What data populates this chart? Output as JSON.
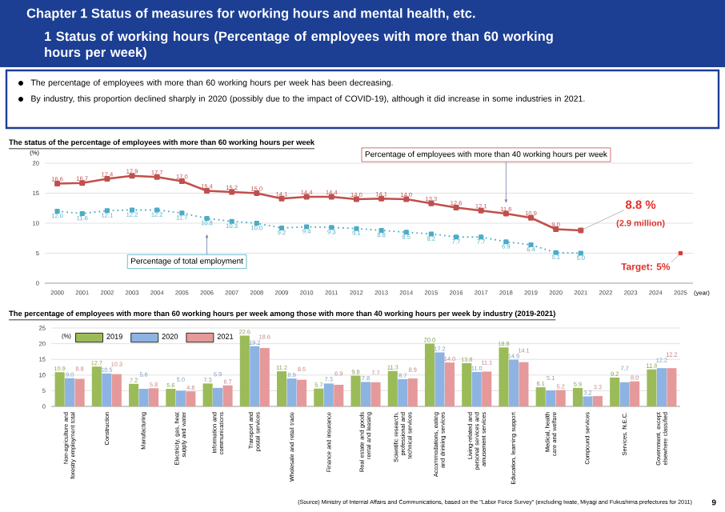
{
  "chart_data": [
    {
      "type": "other",
      "title": "Chapter 1    Status of measures for working hours and mental health, etc.",
      "subtitle": "1    Status of working hours (Percentage of employees with more than 60 working hours per week)",
      "annotations": [
        "The percentage of employees with more than 60 working hours per week has been decreasing.",
        "By industry, this proportion declined sharply in 2020 (possibly due to the impact of COVID-19), although it did increase in some industries in 2021."
      ]
    },
    {
      "type": "line",
      "title": "The status of the percentage of employees with more than 60 working hours per week",
      "xlabel": "(year)",
      "ylabel": "(%)",
      "x": [
        2000,
        2001,
        2002,
        2003,
        2004,
        2005,
        2006,
        2007,
        2008,
        2009,
        2010,
        2011,
        2012,
        2013,
        2014,
        2015,
        2016,
        2017,
        2018,
        2019,
        2020,
        2021
      ],
      "xlim": [
        1999.5,
        2025.5
      ],
      "xticks": [
        2000,
        2001,
        2002,
        2003,
        2004,
        2005,
        2006,
        2007,
        2008,
        2009,
        2010,
        2011,
        2012,
        2013,
        2014,
        2015,
        2016,
        2017,
        2018,
        2019,
        2020,
        2021,
        2022,
        2023,
        2024,
        2025
      ],
      "ylim": [
        0,
        20
      ],
      "yticks": [
        0,
        5,
        10,
        15,
        20
      ],
      "grid": "y",
      "marker": "square",
      "series": [
        {
          "name": "Percentage of employees with more than 40 working hours per week",
          "color": "#c0504d",
          "line_style": "solid",
          "values": [
            16.6,
            16.7,
            17.4,
            17.9,
            17.7,
            17.0,
            15.4,
            15.2,
            15.0,
            14.1,
            14.4,
            14.4,
            14.0,
            14.1,
            14.0,
            13.3,
            12.6,
            12.1,
            11.6,
            10.9,
            9.0,
            8.8
          ],
          "value_labels": [
            "16.6",
            "16.7",
            "17.4",
            "17.9",
            "17.7",
            "17.0",
            "15.4",
            "15.2",
            "15.0",
            "14.1",
            "14.4",
            "14.4",
            "14.0",
            "14.1",
            "14.0",
            "13.3",
            "12.6",
            "12.1",
            "11.6",
            "10.9",
            "9.0",
            null
          ]
        },
        {
          "name": "Percentage of total employment",
          "color": "#4bacc6",
          "line_style": "dotted",
          "values": [
            12.0,
            11.6,
            12.1,
            12.2,
            12.2,
            11.7,
            10.8,
            10.3,
            10.0,
            9.2,
            9.4,
            9.3,
            9.1,
            8.8,
            8.5,
            8.2,
            7.7,
            7.7,
            6.9,
            6.4,
            5.1,
            5.0
          ],
          "value_labels": [
            "12.0",
            "11.6",
            "12.1",
            "12.2",
            "12.2",
            "11.7",
            "10.8",
            "10.3",
            "10.0",
            "9.2",
            "9.4",
            "9.3",
            "9.1",
            "8.8",
            "8.5",
            "8.2",
            "7.7",
            "7.7",
            "6.9",
            "6.4",
            "5.1",
            "5.0"
          ]
        },
        {
          "type": "scatter",
          "color": "#e0302a",
          "x": [
            2025
          ],
          "values": [
            5
          ]
        }
      ],
      "annotations": [
        {
          "text": "8.8 %",
          "x": 2021,
          "y": 8.8
        },
        "(2.9 million)",
        {
          "text": "Target: 5%",
          "x": 2025,
          "y": 5
        }
      ]
    },
    {
      "type": "bar",
      "title": "The percentage of employees with more than 60 working hours per week among those with more than 40 working hours per week by industry (2019-2021)",
      "ylabel": "(%)",
      "categories": [
        "Non-agriculture and forestry employment total",
        "Construction",
        "Manufacturing",
        "Electricity, gas, heat supply and water",
        "Information and communications",
        "Transport and postal services",
        "Wholesale and retail trade",
        "Finance and insurance",
        "Real estate and goods rental and leasing",
        "Scientific research, professional and technical services",
        "Accommodations, eating and drinking services",
        "Living-related and personal services and amusement services",
        "Education, learning support",
        "Medical, health care and welfare",
        "Compound services",
        "Services, N.E.C.",
        "Government, except elsewhere classified"
      ],
      "ylim": [
        0,
        25
      ],
      "yticks": [
        0,
        5,
        10,
        15,
        20,
        25
      ],
      "grid": "y",
      "legend": "top left",
      "series": [
        {
          "name": "2019",
          "color": "#9bbb59",
          "values": [
            10.9,
            12.7,
            7.2,
            5.6,
            7.3,
            22.6,
            11.2,
            5.7,
            9.8,
            11.3,
            20.0,
            13.8,
            18.8,
            6.1,
            5.9,
            9.2,
            11.8
          ],
          "value_labels": [
            "10.9",
            "12.7",
            "7.2",
            "5.6",
            "7.3",
            "22.6",
            "11.2",
            "5.7",
            "9.8",
            "11.3",
            "20.0",
            "13.8",
            "18.8",
            "6.1",
            "5.9",
            "9.2",
            "11.8"
          ]
        },
        {
          "name": "2020",
          "color": "#8db3e2",
          "values": [
            9.0,
            10.5,
            5.6,
            5.0,
            5.9,
            19.2,
            8.9,
            7.3,
            7.8,
            8.7,
            17.2,
            11.0,
            14.9,
            5.1,
            3.2,
            7.7,
            12.2
          ],
          "value_labels": [
            "9.0",
            "10.5",
            "5.6",
            "5.0",
            "5.9",
            "19.2",
            "8.9",
            "7.3",
            "7.8",
            "8.7",
            "17.2",
            "11.0",
            "14.9",
            "5.1",
            "3.2",
            "7.7",
            "12.2"
          ]
        },
        {
          "name": "2021",
          "color": "#e6999a",
          "values": [
            8.8,
            10.3,
            5.8,
            4.8,
            6.7,
            18.6,
            8.5,
            6.9,
            7.7,
            8.9,
            14.0,
            11.1,
            14.1,
            5.2,
            3.3,
            8.0,
            12.2
          ],
          "value_labels": [
            "8.8",
            "10.3",
            "5.8",
            "4.8",
            "6.7",
            "18.6",
            "8.5",
            "6.9",
            "7.7",
            "8.9",
            "14.0",
            "11.1",
            "14.1",
            "5.2",
            "3.3",
            "8.0",
            "12.2"
          ]
        }
      ],
      "annotations": [
        "(Source) Ministry of Internal Affairs and Communications, based on the \"Labor Force Survey\" (excluding Iwate, Miyagi and Fukushima prefectures for 2011)",
        "9"
      ]
    }
  ]
}
